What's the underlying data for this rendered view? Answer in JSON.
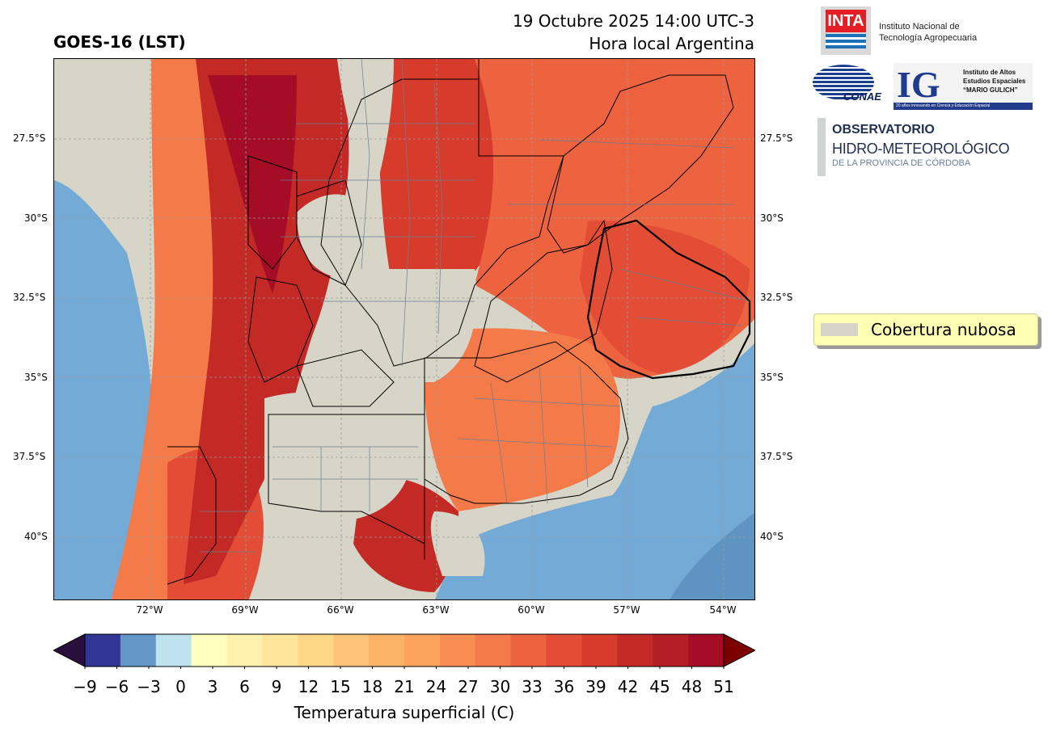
{
  "header": {
    "left_title": "GOES-16 (LST)",
    "right_title_line1": "19 Octubre 2025 14:00 UTC-3",
    "right_title_line2": "Hora local Argentina"
  },
  "map": {
    "lat_labels": [
      "27.5°S",
      "30°S",
      "32.5°S",
      "35°S",
      "37.5°S",
      "40°S"
    ],
    "lon_labels": [
      "72°W",
      "69°W",
      "66°W",
      "63°W",
      "60°W",
      "57°W",
      "54°W"
    ],
    "cloud_color": "#d6d5c7",
    "ocean_color": "#74aad6"
  },
  "logos": {
    "inta": {
      "mark": "INTA",
      "line1": "Instituto Nacional de",
      "line2": "Tecnología Agropecuaria"
    },
    "conae": {
      "mark": "CONAE"
    },
    "ig": {
      "mark": "IG",
      "line1": "Instituto de Altos",
      "line2": "Estudios Espaciales",
      "line3": "“MARIO GULICH”",
      "bar": "20 años innovando en Ciencia y Educación Espacial"
    },
    "observatorio": {
      "line1": "OBSERVATORIO",
      "line2": "HIDRO-METEOROLÓGICO",
      "line3": "DE LA PROVINCIA DE CÓRDOBA"
    }
  },
  "legend": {
    "label": "Cobertura nubosa",
    "swatch_color": "#d6d5c7"
  },
  "colorbar": {
    "title": "Temperatura superficial (C)",
    "ticks": [
      "−9",
      "−6",
      "−3",
      "0",
      "3",
      "6",
      "9",
      "12",
      "15",
      "18",
      "21",
      "24",
      "27",
      "30",
      "33",
      "36",
      "39",
      "42",
      "45",
      "48",
      "51"
    ],
    "colors": [
      "#313695",
      "#6596c8",
      "#bfe2ef",
      "#ffffbf",
      "#fff1ad",
      "#fee59b",
      "#fed887",
      "#fdc478",
      "#fdb367",
      "#fca35c",
      "#f88e52",
      "#f57a49",
      "#ed6340",
      "#e34d35",
      "#d73b2c",
      "#c32a26",
      "#b41e26",
      "#a50c26"
    ],
    "under_color": "#2a0e3e",
    "over_color": "#7d0000"
  }
}
